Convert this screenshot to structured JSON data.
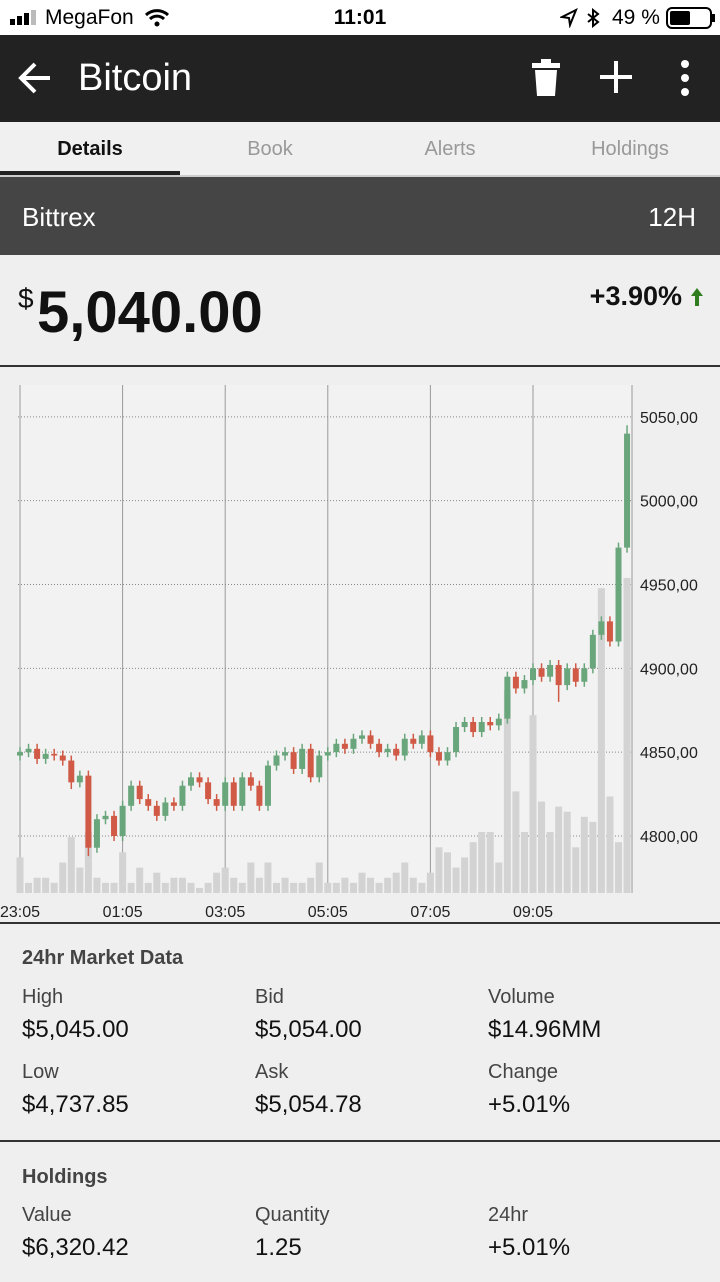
{
  "status_bar": {
    "carrier": "MegaFon",
    "time": "11:01",
    "battery": "49 %"
  },
  "app_bar": {
    "title": "Bitcoin"
  },
  "tabs": {
    "items": [
      "Details",
      "Book",
      "Alerts",
      "Holdings"
    ],
    "active": 0
  },
  "exchange": {
    "name": "Bittrex",
    "range": "12H"
  },
  "price": {
    "currency": "$",
    "value": "5,040.00",
    "change": "+3.90%"
  },
  "chart_data": {
    "type": "candlestick",
    "categories": [
      "23:05",
      null,
      null,
      null,
      null,
      null,
      null,
      null,
      null,
      null,
      null,
      null,
      "01:05",
      null,
      null,
      null,
      null,
      null,
      null,
      null,
      null,
      null,
      null,
      null,
      "03:05",
      null,
      null,
      null,
      null,
      null,
      null,
      null,
      null,
      null,
      null,
      null,
      "05:05",
      null,
      null,
      null,
      null,
      null,
      null,
      null,
      null,
      null,
      null,
      null,
      "07:05",
      null,
      null,
      null,
      null,
      null,
      null,
      null,
      null,
      null,
      null,
      null,
      "09:05",
      null,
      null,
      null,
      null,
      null,
      null,
      null,
      null,
      null,
      null,
      null
    ],
    "open": [
      4848,
      4850,
      4852,
      4846,
      4849,
      4848,
      4845,
      4832,
      4836,
      4793,
      4810,
      4812,
      4800,
      4818,
      4830,
      4822,
      4818,
      4812,
      4820,
      4818,
      4830,
      4835,
      4832,
      4822,
      4818,
      4832,
      4818,
      4835,
      4830,
      4818,
      4842,
      4848,
      4850,
      4840,
      4852,
      4835,
      4848,
      4850,
      4855,
      4852,
      4858,
      4860,
      4855,
      4850,
      4852,
      4848,
      4858,
      4855,
      4860,
      4850,
      4845,
      4850,
      4865,
      4868,
      4862,
      4868,
      4866,
      4870,
      4895,
      4888,
      4893,
      4900,
      4895,
      4902,
      4890,
      4900,
      4892,
      4900,
      4920,
      4928,
      4916,
      4972
    ],
    "high": [
      4853,
      4855,
      4855,
      4852,
      4852,
      4851,
      4848,
      4839,
      4839,
      4813,
      4815,
      4815,
      4821,
      4833,
      4833,
      4825,
      4821,
      4823,
      4823,
      4833,
      4838,
      4838,
      4835,
      4825,
      4835,
      4835,
      4838,
      4838,
      4833,
      4845,
      4851,
      4853,
      4853,
      4855,
      4855,
      4851,
      4853,
      4858,
      4858,
      4861,
      4863,
      4863,
      4858,
      4855,
      4855,
      4861,
      4861,
      4863,
      4863,
      4853,
      4853,
      4868,
      4871,
      4871,
      4871,
      4871,
      4873,
      4898,
      4898,
      4896,
      4903,
      4903,
      4905,
      4905,
      4903,
      4903,
      4903,
      4923,
      4931,
      4931,
      4975,
      5045
    ],
    "low": [
      4845,
      4847,
      4843,
      4843,
      4845,
      4842,
      4828,
      4829,
      4788,
      4790,
      4807,
      4797,
      4797,
      4815,
      4819,
      4815,
      4809,
      4809,
      4815,
      4815,
      4827,
      4829,
      4819,
      4815,
      4815,
      4815,
      4815,
      4827,
      4815,
      4815,
      4839,
      4845,
      4837,
      4837,
      4832,
      4832,
      4845,
      4847,
      4849,
      4849,
      4855,
      4852,
      4847,
      4847,
      4845,
      4845,
      4852,
      4852,
      4847,
      4842,
      4842,
      4847,
      4862,
      4859,
      4859,
      4863,
      4863,
      4867,
      4885,
      4885,
      4890,
      4892,
      4892,
      4880,
      4887,
      4889,
      4889,
      4897,
      4917,
      4913,
      4913,
      4969
    ],
    "close": [
      4850,
      4852,
      4846,
      4849,
      4848,
      4845,
      4832,
      4836,
      4793,
      4810,
      4812,
      4800,
      4818,
      4830,
      4822,
      4818,
      4812,
      4820,
      4818,
      4830,
      4835,
      4832,
      4822,
      4818,
      4832,
      4818,
      4835,
      4830,
      4818,
      4842,
      4848,
      4850,
      4840,
      4852,
      4835,
      4848,
      4850,
      4855,
      4852,
      4858,
      4860,
      4855,
      4850,
      4852,
      4848,
      4858,
      4855,
      4860,
      4850,
      4845,
      4850,
      4865,
      4868,
      4862,
      4868,
      4866,
      4870,
      4895,
      4888,
      4893,
      4900,
      4895,
      4902,
      4890,
      4900,
      4892,
      4900,
      4920,
      4928,
      4916,
      4972,
      5040
    ],
    "volume": [
      7,
      2,
      3,
      3,
      2,
      6,
      11,
      5,
      12,
      3,
      2,
      2,
      8,
      2,
      5,
      2,
      4,
      2,
      3,
      3,
      2,
      1,
      2,
      4,
      5,
      3,
      2,
      6,
      3,
      6,
      2,
      3,
      2,
      2,
      3,
      6,
      2,
      2,
      3,
      2,
      4,
      3,
      2,
      3,
      4,
      6,
      3,
      2,
      4,
      9,
      8,
      5,
      7,
      10,
      12,
      12,
      6,
      40,
      20,
      12,
      35,
      18,
      12,
      17,
      16,
      9,
      15,
      14,
      60,
      19,
      10,
      62
    ],
    "up_color": "#6aa67c",
    "down_color": "#d05a45",
    "volume_color": "#d3d3d3",
    "ylim": [
      4766,
      5069
    ],
    "volume_lim": [
      0,
      100
    ],
    "yticks": [
      {
        "value": 4800,
        "label": "4800,00"
      },
      {
        "value": 4850,
        "label": "4850,00"
      },
      {
        "value": 4900,
        "label": "4900,00"
      },
      {
        "value": 4950,
        "label": "4950,00"
      },
      {
        "value": 5000,
        "label": "5000,00"
      },
      {
        "value": 5050,
        "label": "5050,00"
      }
    ],
    "grid": true
  },
  "market_data": {
    "title": "24hr Market Data",
    "items": [
      {
        "label": "High",
        "value": "$5,045.00"
      },
      {
        "label": "Bid",
        "value": "$5,054.00"
      },
      {
        "label": "Volume",
        "value": "$14.96MM"
      },
      {
        "label": "Low",
        "value": "$4,737.85"
      },
      {
        "label": "Ask",
        "value": "$5,054.78"
      },
      {
        "label": "Change",
        "value": "+5.01%"
      }
    ]
  },
  "holdings": {
    "title": "Holdings",
    "items": [
      {
        "label": "Value",
        "value": "$6,320.42"
      },
      {
        "label": "Quantity",
        "value": "1.25"
      },
      {
        "label": "24hr",
        "value": "+5.01%"
      }
    ]
  }
}
